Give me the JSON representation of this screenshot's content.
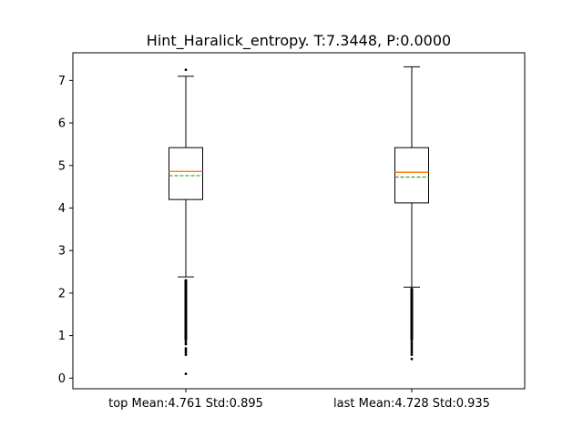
{
  "chart_data": {
    "type": "box",
    "title": "Hint_Haralick_entropy. T:7.3448, P:0.0000",
    "xlabel": "",
    "ylabel": "",
    "ylim": [
      -0.25,
      7.65
    ],
    "yticks": [
      0,
      1,
      2,
      3,
      4,
      5,
      6,
      7
    ],
    "grid": false,
    "legend": "none",
    "categories": [
      "top Mean:4.761 Std:0.895",
      "last Mean:4.728 Std:0.935"
    ],
    "boxes": [
      {
        "label": "top Mean:4.761 Std:0.895",
        "whisker_low": 2.38,
        "q1": 4.2,
        "median": 4.86,
        "mean": 4.761,
        "q3": 5.42,
        "whisker_high": 7.1,
        "outliers_high": [
          7.25
        ],
        "outliers_low": [
          2.3,
          2.2,
          2.1,
          2.0,
          1.9,
          1.8,
          1.7,
          1.6,
          1.5,
          1.4,
          1.3,
          1.2,
          1.1,
          1.0,
          0.95,
          0.9,
          0.85,
          0.8,
          0.7,
          0.65,
          0.6,
          0.55,
          0.1
        ]
      },
      {
        "label": "last Mean:4.728 Std:0.935",
        "whisker_low": 2.14,
        "q1": 4.12,
        "median": 4.84,
        "mean": 4.728,
        "q3": 5.42,
        "whisker_high": 7.32,
        "outliers_high": [],
        "outliers_low": [
          2.1,
          2.0,
          1.9,
          1.8,
          1.7,
          1.6,
          1.5,
          1.4,
          1.3,
          1.2,
          1.1,
          1.0,
          0.95,
          0.9,
          0.85,
          0.8,
          0.75,
          0.7,
          0.65,
          0.6,
          0.55,
          0.45
        ]
      }
    ],
    "colors": {
      "box": "#000000",
      "median": "#ff7f0e",
      "mean": "#2ca02c",
      "outlier": "#000000"
    }
  }
}
